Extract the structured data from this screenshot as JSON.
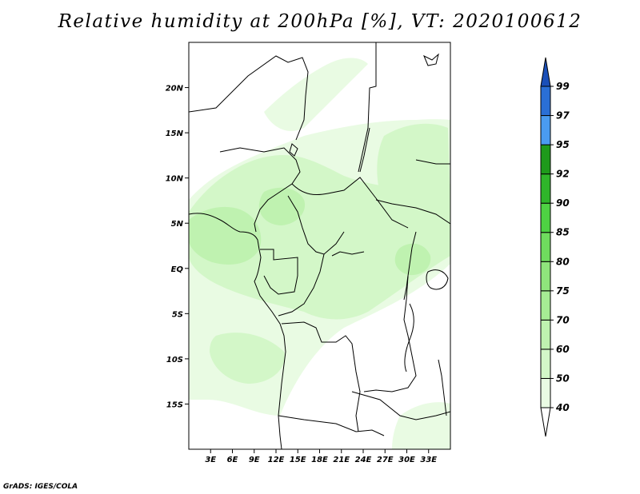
{
  "title": "Relative humidity at 200hPa [%], VT: 2020100612",
  "credit": "GrADS: IGES/COLA",
  "map": {
    "lon_range": [
      0,
      36
    ],
    "lat_range": [
      -20,
      25
    ],
    "lat_ticks": [
      {
        "value": 20,
        "label": "20N"
      },
      {
        "value": 15,
        "label": "15N"
      },
      {
        "value": 10,
        "label": "10N"
      },
      {
        "value": 5,
        "label": "5N"
      },
      {
        "value": 0,
        "label": "EQ"
      },
      {
        "value": -5,
        "label": "5S"
      },
      {
        "value": -10,
        "label": "10S"
      },
      {
        "value": -15,
        "label": "15S"
      }
    ],
    "lon_ticks": [
      {
        "value": 3,
        "label": "3E"
      },
      {
        "value": 6,
        "label": "6E"
      },
      {
        "value": 9,
        "label": "9E"
      },
      {
        "value": 12,
        "label": "12E"
      },
      {
        "value": 15,
        "label": "15E"
      },
      {
        "value": 18,
        "label": "18E"
      },
      {
        "value": 21,
        "label": "21E"
      },
      {
        "value": 24,
        "label": "24E"
      },
      {
        "value": 27,
        "label": "27E"
      },
      {
        "value": 30,
        "label": "30E"
      },
      {
        "value": 33,
        "label": "33E"
      }
    ]
  },
  "colorbar": {
    "levels": [
      "40",
      "50",
      "60",
      "70",
      "75",
      "80",
      "85",
      "90",
      "92",
      "95",
      "97",
      "99"
    ],
    "colors": [
      "#ffffff",
      "#e9fbe3",
      "#d3f7c8",
      "#bff2b0",
      "#a6ec94",
      "#8fe57c",
      "#6fdc5e",
      "#4ed243",
      "#2fb52a",
      "#1e9a1b",
      "#4a9bf0",
      "#2a6fd6",
      "#1a4fb8"
    ]
  },
  "chart_data": {
    "type": "heatmap",
    "title": "Relative humidity at 200hPa [%], VT: 2020100612",
    "variable": "Relative humidity",
    "units": "%",
    "x_range": [
      0,
      36
    ],
    "y_range": [
      -20,
      25
    ],
    "levels": [
      40,
      50,
      60,
      70,
      75,
      80,
      85,
      90,
      92,
      95,
      97,
      99
    ],
    "regions": [
      {
        "level": "40-50",
        "lon": [
          0,
          22
        ],
        "lat": [
          -20,
          15
        ]
      },
      {
        "level": "50-60",
        "lon": [
          0,
          14
        ],
        "lat": [
          -5,
          12
        ]
      },
      {
        "level": "60-70",
        "lon": [
          0,
          14
        ],
        "lat": [
          2,
          10
        ]
      },
      {
        "level": "50-60",
        "lon": [
          18,
          36
        ],
        "lat": [
          0,
          16
        ]
      },
      {
        "level": "50-60",
        "lon": [
          6,
          18
        ],
        "lat": [
          -15,
          -7
        ]
      }
    ]
  }
}
